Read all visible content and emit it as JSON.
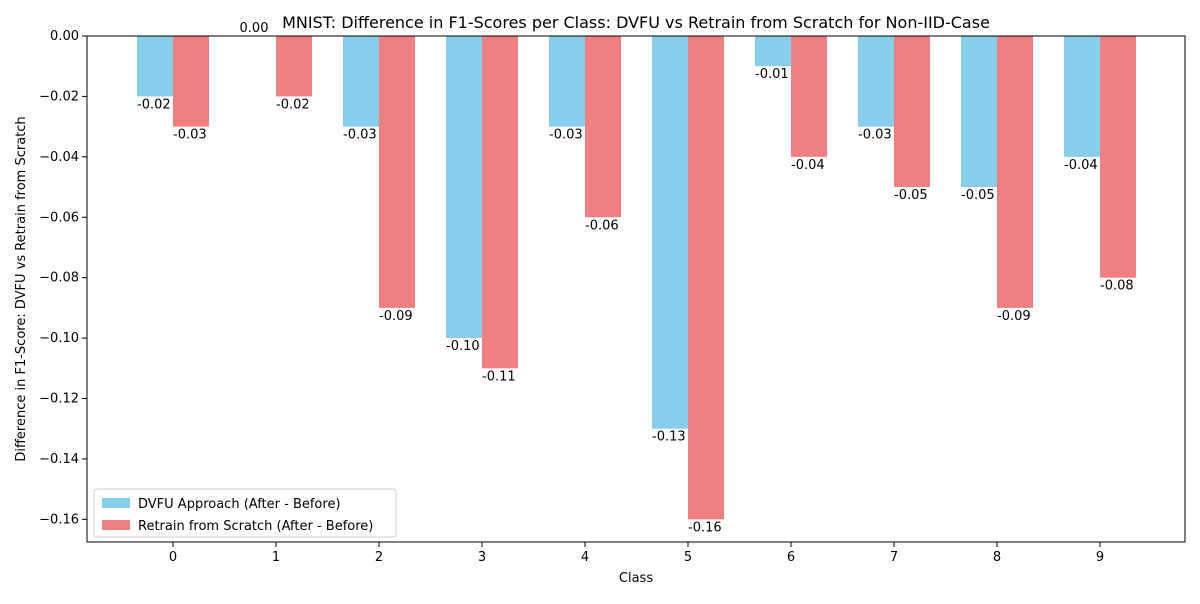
{
  "chart_data": {
    "type": "bar",
    "title": "MNIST: Difference in F1-Scores per Class: DVFU vs Retrain from Scratch for Non-IID-Case",
    "xlabel": "Class",
    "ylabel": "Difference in F1-Score: DVFU vs Retrain from Scratch",
    "categories": [
      "0",
      "1",
      "2",
      "3",
      "4",
      "5",
      "6",
      "7",
      "8",
      "9"
    ],
    "series": [
      {
        "name": "DVFU Approach (After - Before)",
        "color": "#87CEEB",
        "values": [
          -0.02,
          0.0,
          -0.03,
          -0.1,
          -0.03,
          -0.13,
          -0.01,
          -0.03,
          -0.05,
          -0.04
        ],
        "labels": [
          "-0.02",
          "0.00",
          "-0.03",
          "-0.10",
          "-0.03",
          "-0.13",
          "-0.01",
          "-0.03",
          "-0.05",
          "-0.04"
        ]
      },
      {
        "name": "Retrain from Scratch (After - Before)",
        "color": "#F08080",
        "values": [
          -0.03,
          -0.02,
          -0.09,
          -0.11,
          -0.06,
          -0.16,
          -0.04,
          -0.05,
          -0.09,
          -0.08
        ],
        "labels": [
          "-0.03",
          "-0.02",
          "-0.09",
          "-0.11",
          "-0.06",
          "-0.16",
          "-0.04",
          "-0.05",
          "-0.09",
          "-0.08"
        ]
      }
    ],
    "ylim": [
      -0.1675,
      0.0
    ],
    "yticks": [
      0.0,
      -0.02,
      -0.04,
      -0.06,
      -0.08,
      -0.1,
      -0.12,
      -0.14,
      -0.16
    ],
    "ytick_labels": [
      "0.00",
      "−0.02",
      "−0.04",
      "−0.06",
      "−0.08",
      "−0.10",
      "−0.12",
      "−0.14",
      "−0.16"
    ],
    "grid": false,
    "legend_position": "bottom-left"
  }
}
